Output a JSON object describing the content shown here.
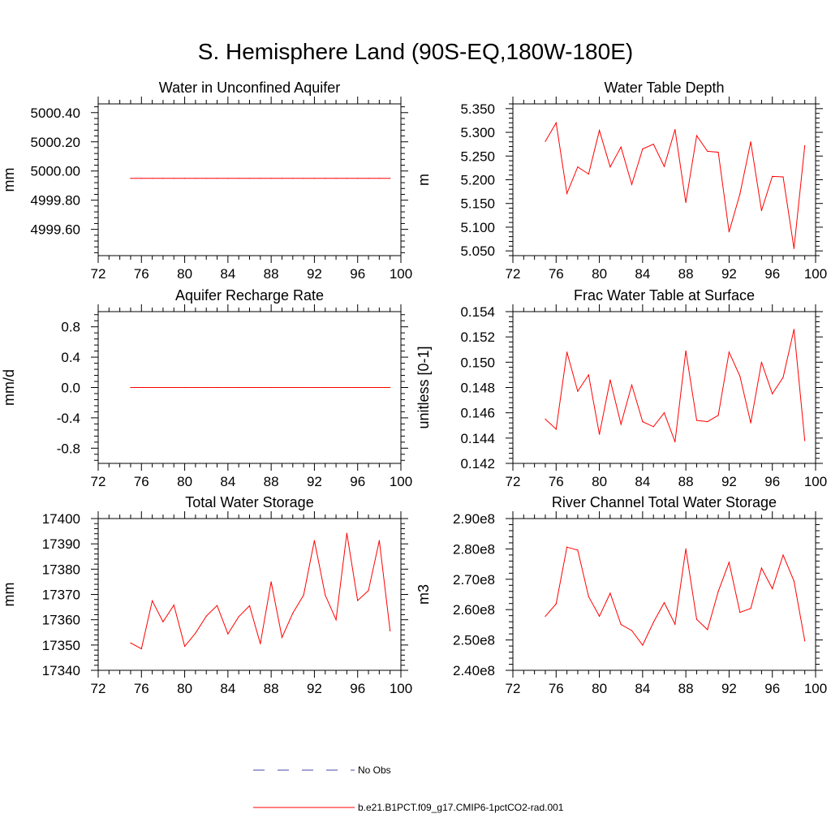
{
  "title": "S. Hemisphere Land (90S-EQ,180W-180E)",
  "chart_data": [
    {
      "type": "line",
      "title": "Water in Unconfined Aquifer",
      "ylabel": "mm",
      "xlim": [
        72,
        100
      ],
      "xticks": [
        72,
        76,
        80,
        84,
        88,
        92,
        96,
        100
      ],
      "xtick_labels": [
        "72",
        "76",
        "80",
        "84",
        "88",
        "92",
        "96",
        "100"
      ],
      "ylim": [
        4999.42,
        5000.46
      ],
      "yticks": [
        4999.6,
        4999.8,
        5000.0,
        5000.2,
        5000.4
      ],
      "ytick_labels": [
        "4999.60",
        "4999.80",
        "5000.00",
        "5000.20",
        "5000.40"
      ],
      "series": [
        {
          "name": "b.e21.B1PCT.f09_g17.CMIP6-1pctCO2-rad.001",
          "color": "#ff0000",
          "x": [
            75,
            76,
            77,
            78,
            79,
            80,
            81,
            82,
            83,
            84,
            85,
            86,
            87,
            88,
            89,
            90,
            91,
            92,
            93,
            94,
            95,
            96,
            97,
            98,
            99
          ],
          "y": [
            4999.95,
            4999.95,
            4999.95,
            4999.95,
            4999.95,
            4999.95,
            4999.95,
            4999.95,
            4999.95,
            4999.95,
            4999.95,
            4999.95,
            4999.95,
            4999.95,
            4999.95,
            4999.95,
            4999.95,
            4999.95,
            4999.95,
            4999.95,
            4999.95,
            4999.95,
            4999.95,
            4999.95,
            4999.95
          ]
        }
      ]
    },
    {
      "type": "line",
      "title": "Water Table Depth",
      "ylabel": "m",
      "xlim": [
        72,
        100
      ],
      "xticks": [
        72,
        76,
        80,
        84,
        88,
        92,
        96,
        100
      ],
      "xtick_labels": [
        "72",
        "76",
        "80",
        "84",
        "88",
        "92",
        "96",
        "100"
      ],
      "ylim": [
        5.04,
        5.36
      ],
      "yticks": [
        5.05,
        5.1,
        5.15,
        5.2,
        5.25,
        5.3,
        5.35
      ],
      "ytick_labels": [
        "5.050",
        "5.100",
        "5.150",
        "5.200",
        "5.250",
        "5.300",
        "5.350"
      ],
      "series": [
        {
          "name": "b.e21.B1PCT.f09_g17.CMIP6-1pctCO2-rad.001",
          "color": "#ff0000",
          "x": [
            75,
            76,
            77,
            78,
            79,
            80,
            81,
            82,
            83,
            84,
            85,
            86,
            87,
            88,
            89,
            90,
            91,
            92,
            93,
            94,
            95,
            96,
            97,
            98,
            99
          ],
          "y": [
            5.281,
            5.32,
            5.171,
            5.227,
            5.212,
            5.304,
            5.227,
            5.269,
            5.19,
            5.265,
            5.275,
            5.228,
            5.306,
            5.152,
            5.293,
            5.26,
            5.258,
            5.09,
            5.17,
            5.28,
            5.135,
            5.207,
            5.206,
            5.055,
            5.272
          ]
        }
      ]
    },
    {
      "type": "line",
      "title": "Aquifer Recharge Rate",
      "ylabel": "mm/d",
      "xlim": [
        72,
        100
      ],
      "xticks": [
        72,
        76,
        80,
        84,
        88,
        92,
        96,
        100
      ],
      "xtick_labels": [
        "72",
        "76",
        "80",
        "84",
        "88",
        "92",
        "96",
        "100"
      ],
      "ylim": [
        -1.0,
        1.0
      ],
      "yticks": [
        -0.8,
        -0.4,
        0.0,
        0.4,
        0.8
      ],
      "ytick_labels": [
        "-0.8",
        "-0.4",
        "0.0",
        "0.4",
        "0.8"
      ],
      "series": [
        {
          "name": "b.e21.B1PCT.f09_g17.CMIP6-1pctCO2-rad.001",
          "color": "#ff0000",
          "x": [
            75,
            76,
            77,
            78,
            79,
            80,
            81,
            82,
            83,
            84,
            85,
            86,
            87,
            88,
            89,
            90,
            91,
            92,
            93,
            94,
            95,
            96,
            97,
            98,
            99
          ],
          "y": [
            0,
            0,
            0,
            0,
            0,
            0,
            0,
            0,
            0,
            0,
            0,
            0,
            0,
            0,
            0,
            0,
            0,
            0,
            0,
            0,
            0,
            0,
            0,
            0,
            0
          ]
        }
      ]
    },
    {
      "type": "line",
      "title": "Frac Water Table at Surface",
      "ylabel": "unitless [0-1]",
      "xlim": [
        72,
        100
      ],
      "xticks": [
        72,
        76,
        80,
        84,
        88,
        92,
        96,
        100
      ],
      "xtick_labels": [
        "72",
        "76",
        "80",
        "84",
        "88",
        "92",
        "96",
        "100"
      ],
      "ylim": [
        0.142,
        0.154
      ],
      "yticks": [
        0.142,
        0.144,
        0.146,
        0.148,
        0.15,
        0.152,
        0.154
      ],
      "ytick_labels": [
        "0.142",
        "0.144",
        "0.146",
        "0.148",
        "0.150",
        "0.152",
        "0.154"
      ],
      "series": [
        {
          "name": "b.e21.B1PCT.f09_g17.CMIP6-1pctCO2-rad.001",
          "color": "#ff0000",
          "x": [
            75,
            76,
            77,
            78,
            79,
            80,
            81,
            82,
            83,
            84,
            85,
            86,
            87,
            88,
            89,
            90,
            91,
            92,
            93,
            94,
            95,
            96,
            97,
            98,
            99
          ],
          "y": [
            0.1455,
            0.1447,
            0.1508,
            0.1477,
            0.149,
            0.1443,
            0.1486,
            0.1451,
            0.1482,
            0.1453,
            0.1449,
            0.146,
            0.1437,
            0.1509,
            0.1454,
            0.1453,
            0.1458,
            0.1508,
            0.1489,
            0.1452,
            0.15,
            0.1475,
            0.1488,
            0.1526,
            0.1438
          ]
        }
      ]
    },
    {
      "type": "line",
      "title": "Total Water Storage",
      "ylabel": "mm",
      "xlim": [
        72,
        100
      ],
      "xticks": [
        72,
        76,
        80,
        84,
        88,
        92,
        96,
        100
      ],
      "xtick_labels": [
        "72",
        "76",
        "80",
        "84",
        "88",
        "92",
        "96",
        "100"
      ],
      "ylim": [
        17340,
        17400
      ],
      "yticks": [
        17340,
        17350,
        17360,
        17370,
        17380,
        17390,
        17400
      ],
      "ytick_labels": [
        "17340",
        "17350",
        "17360",
        "17370",
        "17380",
        "17390",
        "17400"
      ],
      "series": [
        {
          "name": "b.e21.B1PCT.f09_g17.CMIP6-1pctCO2-rad.001",
          "color": "#ff0000",
          "x": [
            75,
            76,
            77,
            78,
            79,
            80,
            81,
            82,
            83,
            84,
            85,
            86,
            87,
            88,
            89,
            90,
            91,
            92,
            93,
            94,
            95,
            96,
            97,
            98,
            99
          ],
          "y": [
            17350.8,
            17348.5,
            17367.5,
            17359.2,
            17365.8,
            17349.5,
            17354.7,
            17361.4,
            17365.6,
            17354.4,
            17361.2,
            17365.5,
            17350.5,
            17375,
            17353,
            17362.6,
            17369.7,
            17391.3,
            17369.7,
            17360,
            17394.2,
            17367.6,
            17371.5,
            17391.3,
            17355.6
          ]
        }
      ]
    },
    {
      "type": "line",
      "title": "River Channel Total Water Storage",
      "ylabel": "m3",
      "xlim": [
        72,
        100
      ],
      "xticks": [
        72,
        76,
        80,
        84,
        88,
        92,
        96,
        100
      ],
      "xtick_labels": [
        "72",
        "76",
        "80",
        "84",
        "88",
        "92",
        "96",
        "100"
      ],
      "ylim": [
        240000000,
        290000000
      ],
      "yticks": [
        240000000,
        250000000,
        260000000,
        270000000,
        280000000,
        290000000
      ],
      "ytick_labels": [
        "2.40e8",
        "2.50e8",
        "2.60e8",
        "2.70e8",
        "2.80e8",
        "2.90e8"
      ],
      "series": [
        {
          "name": "b.e21.B1PCT.f09_g17.CMIP6-1pctCO2-rad.001",
          "color": "#ff0000",
          "x": [
            75,
            76,
            77,
            78,
            79,
            80,
            81,
            82,
            83,
            84,
            85,
            86,
            87,
            88,
            89,
            90,
            91,
            92,
            93,
            94,
            95,
            96,
            97,
            98,
            99
          ],
          "y": [
            257800000,
            261900000,
            280600000,
            279600000,
            264300000,
            257800000,
            265400000,
            255100000,
            253100000,
            248300000,
            255800000,
            262300000,
            255200000,
            280000000,
            256800000,
            253400000,
            266000000,
            275600000,
            259100000,
            260400000,
            273700000,
            266900000,
            278000000,
            269400000,
            249700000
          ]
        }
      ]
    }
  ],
  "legend": {
    "items": [
      {
        "label": "No Obs",
        "color": "#4444aa",
        "style": "dashed"
      },
      {
        "label": "b.e21.B1PCT.f09_g17.CMIP6-1pctCO2-rad.001",
        "color": "#ff0000",
        "style": "solid"
      }
    ]
  }
}
